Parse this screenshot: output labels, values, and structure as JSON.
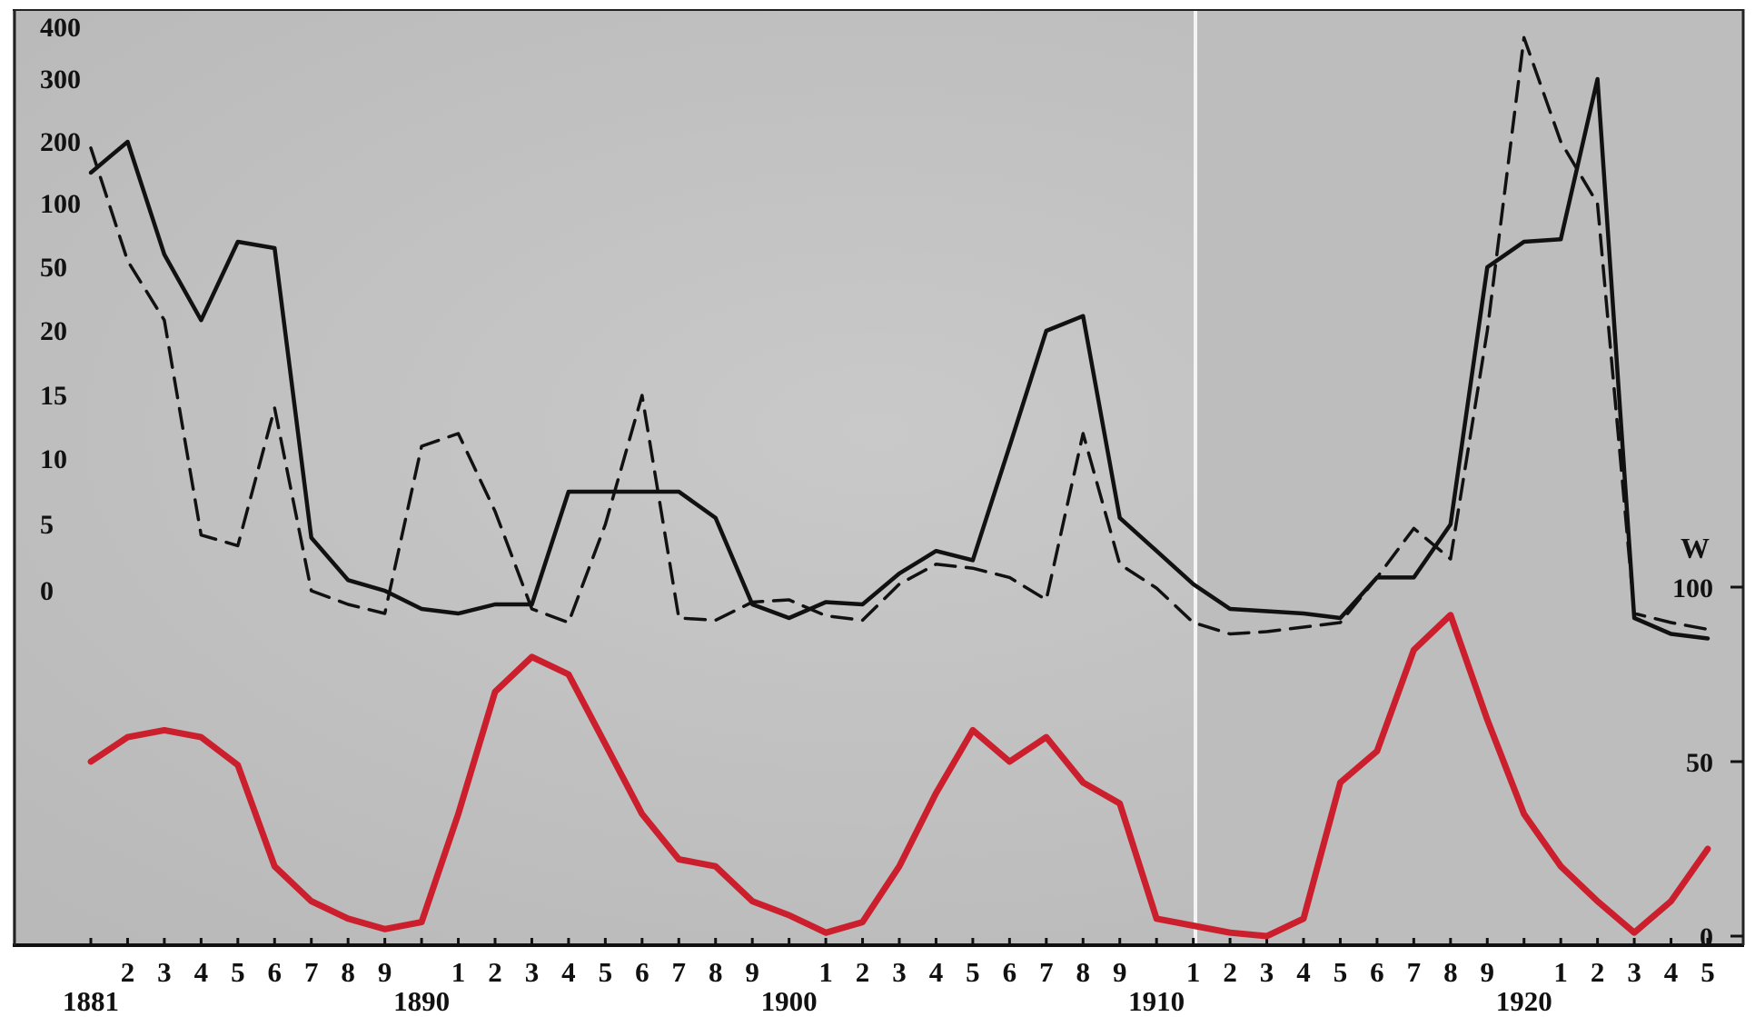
{
  "chart_data": {
    "type": "line",
    "title": "",
    "xlabel": "",
    "ylabel": "",
    "x_range": [
      1881,
      1925
    ],
    "year_labels": [
      "1881",
      "1890",
      "1900",
      "1910",
      "1920"
    ],
    "year_label_positions": [
      1881,
      1890,
      1900,
      1910,
      1920
    ],
    "x_tick_labels": [
      {
        "year": 1882,
        "text": "2"
      },
      {
        "year": 1883,
        "text": "3"
      },
      {
        "year": 1884,
        "text": "4"
      },
      {
        "year": 1885,
        "text": "5"
      },
      {
        "year": 1886,
        "text": "6"
      },
      {
        "year": 1887,
        "text": "7"
      },
      {
        "year": 1888,
        "text": "8"
      },
      {
        "year": 1889,
        "text": "9"
      },
      {
        "year": 1891,
        "text": "1"
      },
      {
        "year": 1892,
        "text": "2"
      },
      {
        "year": 1893,
        "text": "3"
      },
      {
        "year": 1894,
        "text": "4"
      },
      {
        "year": 1895,
        "text": "5"
      },
      {
        "year": 1896,
        "text": "6"
      },
      {
        "year": 1897,
        "text": "7"
      },
      {
        "year": 1898,
        "text": "8"
      },
      {
        "year": 1899,
        "text": "9"
      },
      {
        "year": 1901,
        "text": "1"
      },
      {
        "year": 1902,
        "text": "2"
      },
      {
        "year": 1903,
        "text": "3"
      },
      {
        "year": 1904,
        "text": "4"
      },
      {
        "year": 1905,
        "text": "5"
      },
      {
        "year": 1906,
        "text": "6"
      },
      {
        "year": 1907,
        "text": "7"
      },
      {
        "year": 1908,
        "text": "8"
      },
      {
        "year": 1909,
        "text": "9"
      },
      {
        "year": 1911,
        "text": "1"
      },
      {
        "year": 1912,
        "text": "2"
      },
      {
        "year": 1913,
        "text": "3"
      },
      {
        "year": 1914,
        "text": "4"
      },
      {
        "year": 1915,
        "text": "5"
      },
      {
        "year": 1916,
        "text": "6"
      },
      {
        "year": 1917,
        "text": "7"
      },
      {
        "year": 1918,
        "text": "8"
      },
      {
        "year": 1919,
        "text": "9"
      },
      {
        "year": 1921,
        "text": "1"
      },
      {
        "year": 1922,
        "text": "2"
      },
      {
        "year": 1923,
        "text": "3"
      },
      {
        "year": 1924,
        "text": "4"
      },
      {
        "year": 1925,
        "text": "5"
      }
    ],
    "left_axis": {
      "tick_labels": [
        "400",
        "300",
        "200",
        "100",
        "50",
        "20",
        "15",
        "10",
        "5",
        "0"
      ],
      "scale": "piecewise"
    },
    "right_axis": {
      "label": "W",
      "ticks": [
        0,
        50,
        100
      ],
      "tick_labels": [
        "0",
        "50",
        "100"
      ]
    },
    "series": [
      {
        "style": "solid",
        "color": "#111111",
        "axis": "left",
        "x": [
          1881,
          1882,
          1883,
          1884,
          1885,
          1886,
          1887,
          1888,
          1889,
          1890,
          1891,
          1892,
          1893,
          1894,
          1895,
          1896,
          1897,
          1898,
          1899,
          1900,
          1901,
          1902,
          1903,
          1904,
          1905,
          1906,
          1907,
          1908,
          1909,
          1910,
          1911,
          1912,
          1913,
          1914,
          1915,
          1916,
          1917,
          1918,
          1919,
          1920,
          1921,
          1922,
          1923,
          1924,
          1925
        ],
        "y": [
          150,
          200,
          60,
          25,
          70,
          65,
          4,
          0.8,
          0,
          -0.8,
          -1,
          -0.6,
          -0.6,
          7.5,
          7.5,
          7.5,
          7.5,
          5.5,
          -0.6,
          -1.2,
          -0.5,
          -0.6,
          1.3,
          3,
          2.3,
          11,
          20,
          27,
          5.5,
          3,
          0.5,
          -0.8,
          -0.9,
          -1,
          -1.2,
          1,
          1,
          5,
          50,
          70,
          72,
          300,
          -1.2,
          -1.9,
          -2.1
        ]
      },
      {
        "style": "dashed",
        "color": "#111111",
        "axis": "left",
        "x": [
          1881,
          1882,
          1883,
          1884,
          1885,
          1886,
          1887,
          1888,
          1889,
          1890,
          1891,
          1892,
          1893,
          1894,
          1895,
          1896,
          1897,
          1898,
          1899,
          1900,
          1901,
          1902,
          1903,
          1904,
          1905,
          1906,
          1907,
          1908,
          1909,
          1910,
          1911,
          1912,
          1913,
          1914,
          1915,
          1916,
          1917,
          1918,
          1919,
          1920,
          1921,
          1922,
          1923,
          1924,
          1925
        ],
        "y": [
          190,
          55,
          25,
          4.2,
          3.4,
          14,
          0,
          -0.6,
          -1,
          11,
          12,
          6,
          -0.8,
          -1.4,
          5,
          15,
          -1.2,
          -1.3,
          -0.5,
          -0.4,
          -1.1,
          -1.3,
          0.5,
          2,
          1.7,
          1,
          -0.4,
          12,
          2,
          0.2,
          -1.4,
          -1.9,
          -1.8,
          -1.6,
          -1.4,
          1,
          4.7,
          2.4,
          20,
          380,
          200,
          100,
          -1,
          -1.4,
          -1.7
        ]
      },
      {
        "style": "solid",
        "color": "#cc1f2e",
        "axis": "right",
        "x": [
          1881,
          1882,
          1883,
          1884,
          1885,
          1886,
          1887,
          1888,
          1889,
          1890,
          1891,
          1892,
          1893,
          1894,
          1895,
          1896,
          1897,
          1898,
          1899,
          1900,
          1901,
          1902,
          1903,
          1904,
          1905,
          1906,
          1907,
          1908,
          1909,
          1910,
          1911,
          1912,
          1913,
          1914,
          1915,
          1916,
          1917,
          1918,
          1919,
          1920,
          1921,
          1922,
          1923,
          1924,
          1925
        ],
        "y": [
          50,
          57,
          59,
          57,
          49,
          20,
          10,
          5,
          2,
          4,
          35,
          70,
          80,
          75,
          55,
          35,
          22,
          20,
          10,
          6,
          1,
          4,
          20,
          41,
          59,
          50,
          57,
          44,
          38,
          5,
          3,
          1,
          0,
          5,
          44,
          53,
          82,
          92,
          62,
          35,
          20,
          10,
          1,
          10,
          25
        ]
      }
    ]
  }
}
